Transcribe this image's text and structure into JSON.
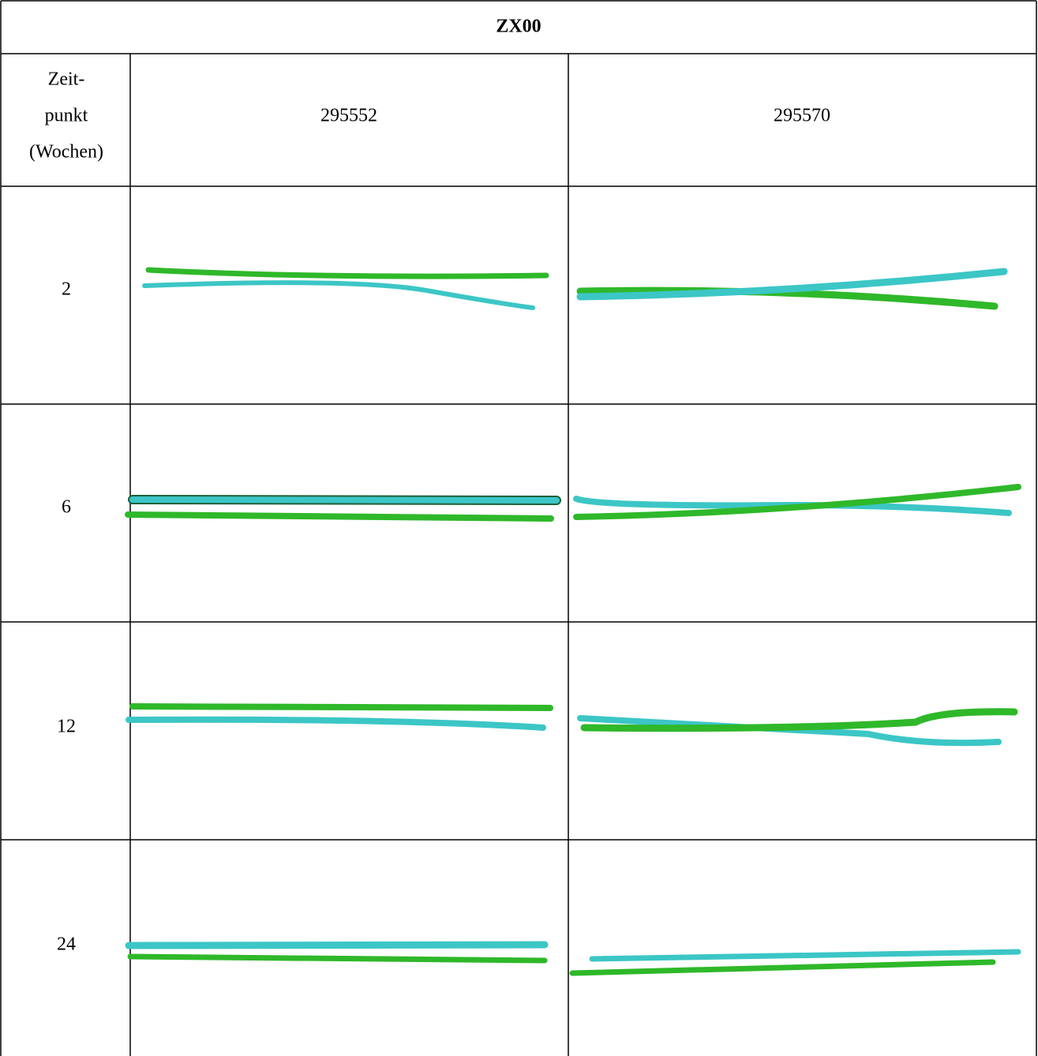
{
  "table": {
    "title": "ZX00",
    "header": {
      "time_label": [
        "Zeit-",
        "punkt",
        "(Wochen)"
      ],
      "columns": [
        "295552",
        "295570"
      ]
    },
    "rows": [
      "2",
      "6",
      "12",
      "24"
    ]
  }
}
